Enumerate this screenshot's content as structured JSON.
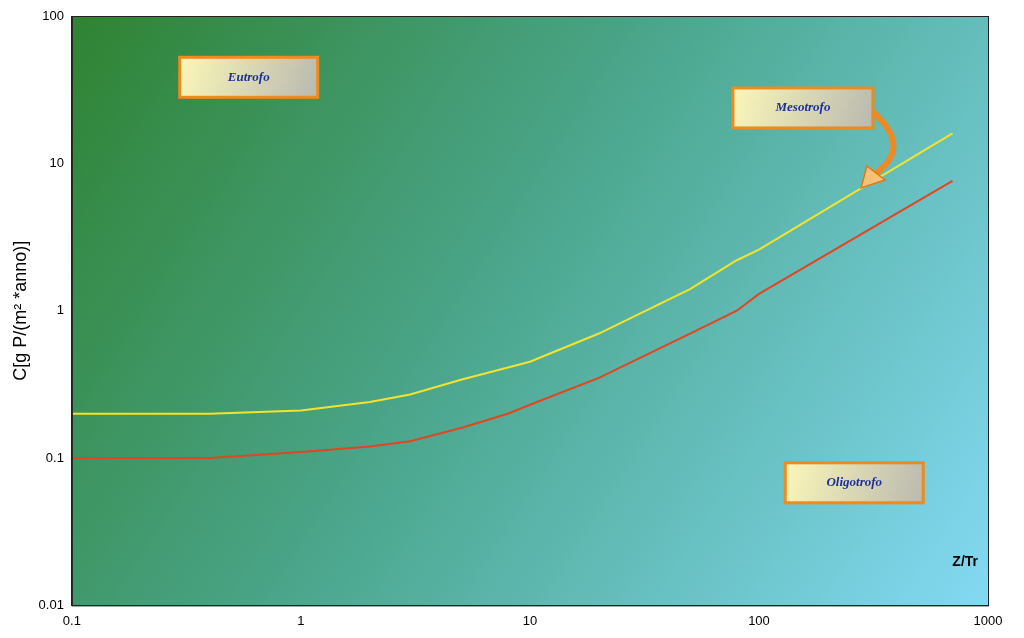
{
  "chart_data": {
    "type": "line",
    "x_label": "Z/Tr",
    "y_label": "C[g P/(m² *anno)]",
    "log": true,
    "grid": false,
    "xlim": [
      0.1,
      1000
    ],
    "ylim": [
      0.01,
      100
    ],
    "xticks": [
      0.1,
      1,
      10,
      100,
      1000
    ],
    "yticks": [
      0.01,
      0.1,
      1,
      10,
      100
    ],
    "series": [
      {
        "color": "#f2e32c",
        "x": [
          0.1,
          0.4,
          1,
          2,
          3,
          5,
          10,
          20,
          50,
          80,
          100,
          700
        ],
        "values": [
          0.2,
          0.2,
          0.21,
          0.24,
          0.27,
          0.34,
          0.45,
          0.7,
          1.4,
          2.2,
          2.6,
          16
        ]
      },
      {
        "color": "#e2451f",
        "x": [
          0.1,
          0.4,
          1,
          2,
          3,
          5,
          8,
          10,
          20,
          50,
          80,
          100,
          700
        ],
        "values": [
          0.1,
          0.1,
          0.11,
          0.12,
          0.13,
          0.16,
          0.2,
          0.23,
          0.35,
          0.7,
          1.0,
          1.3,
          7.6
        ]
      }
    ],
    "annotations": [
      "Eutrofo",
      "Mesotrofo",
      "Oligotrofo"
    ]
  }
}
